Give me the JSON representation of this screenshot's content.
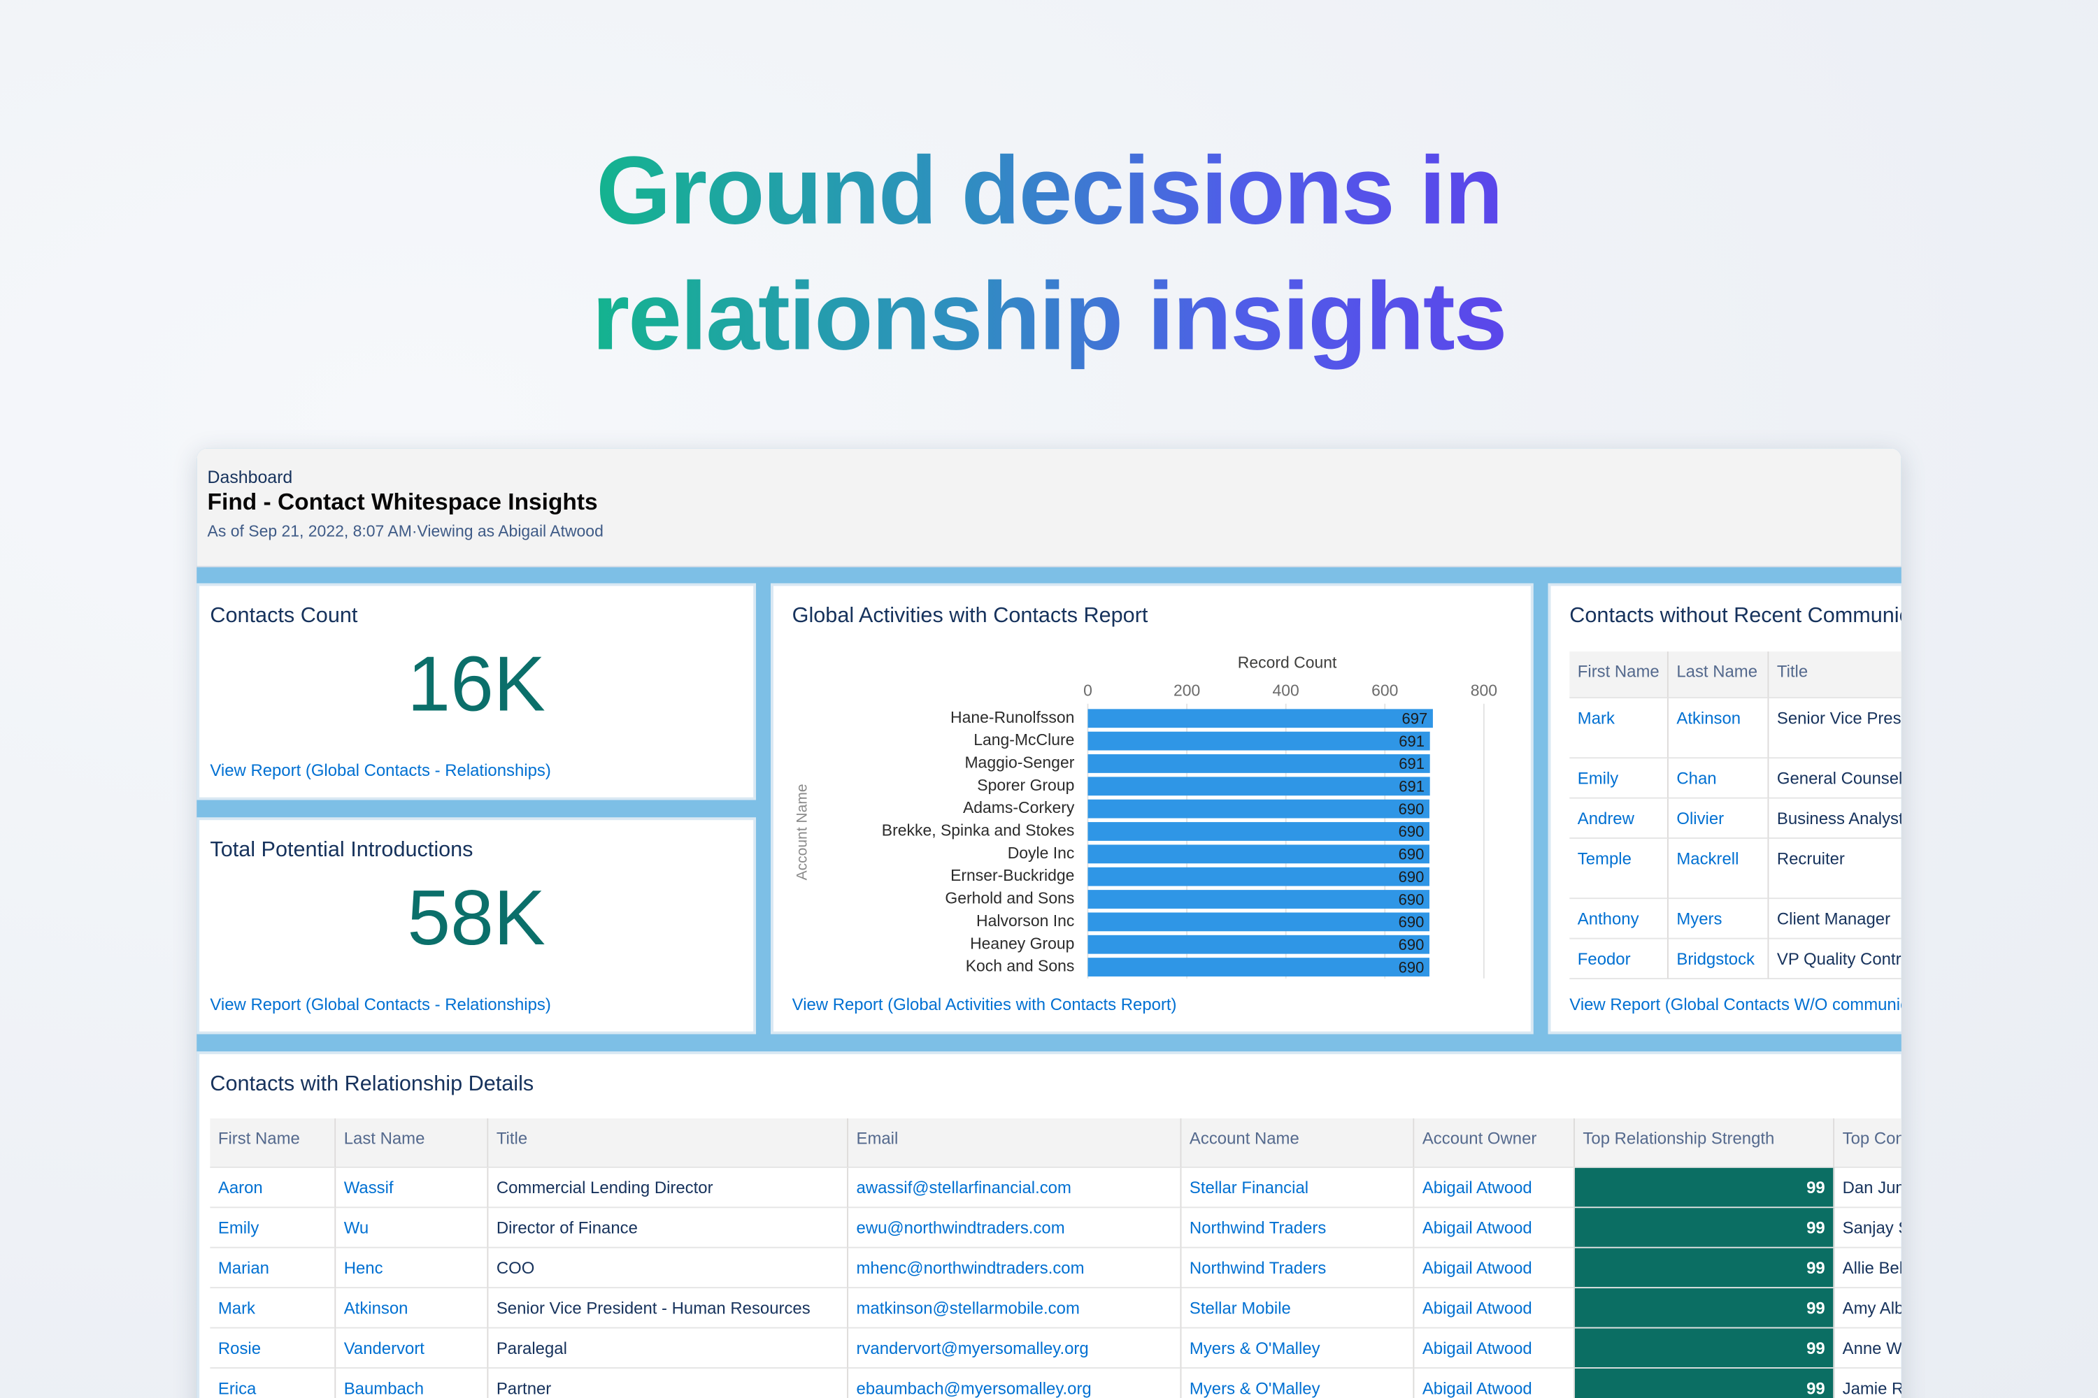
{
  "headline": {
    "line1": "Ground decisions in",
    "line2": "relationship insights"
  },
  "dashboard": {
    "label": "Dashboard",
    "title": "Find - Contact Whitespace Insights",
    "subtitle": "As of Sep 21, 2022, 8:07 AM·Viewing as Abigail Atwood"
  },
  "contacts_count": {
    "title": "Contacts Count",
    "value": "16K",
    "link": "View Report (Global Contacts - Relationships)"
  },
  "potential_introductions": {
    "title": "Total Potential Introductions",
    "value": "58K",
    "link": "View Report (Global Contacts - Relationships)"
  },
  "chart_data": {
    "type": "bar",
    "orientation": "horizontal",
    "title": "Global Activities with Contacts Report",
    "x_label": "Record Count",
    "y_label": "Account Name",
    "categories": [
      "Hane-Runolfsson",
      "Lang-McClure",
      "Maggio-Senger",
      "Sporer Group",
      "Adams-Corkery",
      "Brekke, Spinka and Stokes",
      "Doyle Inc",
      "Ernser-Buckridge",
      "Gerhold and Sons",
      "Halvorson Inc",
      "Heaney Group",
      "Koch and Sons"
    ],
    "values": [
      697,
      691,
      691,
      691,
      690,
      690,
      690,
      690,
      690,
      690,
      690,
      690
    ],
    "color": "#2f96e6",
    "xlim": [
      0,
      800
    ],
    "xticks": [
      0,
      200,
      400,
      600,
      800
    ],
    "grid": true,
    "link": "View Report (Global Activities with Contacts Report)"
  },
  "no_recent_table": {
    "title": "Contacts without Recent Communication",
    "columns": [
      "First Name",
      "Last Name",
      "Title"
    ],
    "rows": [
      [
        "Mark",
        "Atkinson",
        "Senior Vice President"
      ],
      [
        "Emily",
        "Chan",
        "General Counsel"
      ],
      [
        "Andrew",
        "Olivier",
        "Business Analyst"
      ],
      [
        "Temple",
        "Mackrell",
        "Recruiter"
      ],
      [
        "Anthony",
        "Myers",
        "Client Manager"
      ],
      [
        "Feodor",
        "Bridgstock",
        "VP Quality Control"
      ]
    ],
    "link": "View Report (Global Contacts W/O communication)"
  },
  "relationship_table": {
    "title": "Contacts with Relationship Details",
    "columns": [
      "First Name",
      "Last Name",
      "Title",
      "Email",
      "Account Name",
      "Account Owner",
      "Top Relationship Strength",
      "Top Connection"
    ],
    "rows": [
      [
        "Aaron",
        "Wassif",
        "Commercial Lending Director",
        "awassif@stellarfinancial.com",
        "Stellar Financial",
        "Abigail Atwood",
        99,
        "Dan Jump"
      ],
      [
        "Emily",
        "Wu",
        "Director of Finance",
        "ewu@northwindtraders.com",
        "Northwind Traders",
        "Abigail Atwood",
        99,
        "Sanjay Shah"
      ],
      [
        "Marian",
        "Henc",
        "COO",
        "mhenc@northwindtraders.com",
        "Northwind Traders",
        "Abigail Atwood",
        99,
        "Allie Bellew"
      ],
      [
        "Mark",
        "Atkinson",
        "Senior Vice President - Human Resources",
        "matkinson@stellarmobile.com",
        "Stellar Mobile",
        "Abigail Atwood",
        99,
        "Amy Albert"
      ],
      [
        "Rosie",
        "Vandervort",
        "Paralegal",
        "rvandervort@myersomalley.org",
        "Myers & O'Malley",
        "Abigail Atwood",
        99,
        "Anne Weiler"
      ],
      [
        "Erica",
        "Baumbach",
        "Partner",
        "ebaumbach@myersomalley.org",
        "Myers & O'Malley",
        "Abigail Atwood",
        99,
        "Jamie Reding"
      ]
    ]
  }
}
